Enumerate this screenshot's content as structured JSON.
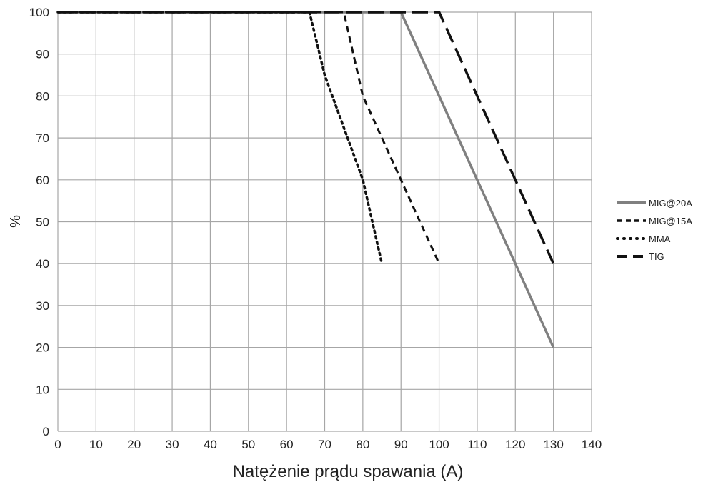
{
  "chart_data": {
    "type": "line",
    "xlabel": "Natężenie prądu spawania (A)",
    "ylabel": "%",
    "xlim": [
      0,
      140
    ],
    "ylim": [
      0,
      100
    ],
    "xticks": [
      0,
      10,
      20,
      30,
      40,
      50,
      60,
      70,
      80,
      90,
      100,
      110,
      120,
      130,
      140
    ],
    "yticks": [
      0,
      10,
      20,
      30,
      40,
      50,
      60,
      70,
      80,
      90,
      100
    ],
    "grid": true,
    "legend_position": "right",
    "series": [
      {
        "name": "MIG@20A",
        "style": "solid",
        "color": "#808080",
        "points": [
          [
            0,
            100
          ],
          [
            90,
            100
          ],
          [
            100,
            80
          ],
          [
            110,
            60
          ],
          [
            120,
            40
          ],
          [
            130,
            20
          ]
        ]
      },
      {
        "name": "MIG@15A",
        "style": "dashed",
        "color": "#111111",
        "points": [
          [
            0,
            100
          ],
          [
            75,
            100
          ],
          [
            80,
            80
          ],
          [
            90,
            60
          ],
          [
            100,
            40
          ]
        ]
      },
      {
        "name": "MMA",
        "style": "dotted",
        "color": "#111111",
        "points": [
          [
            0,
            100
          ],
          [
            66,
            100
          ],
          [
            70,
            85
          ],
          [
            80,
            60
          ],
          [
            85,
            40
          ]
        ]
      },
      {
        "name": "TIG",
        "style": "long-dashed",
        "color": "#111111",
        "points": [
          [
            0,
            100
          ],
          [
            100,
            100
          ],
          [
            110,
            80
          ],
          [
            120,
            60
          ],
          [
            130,
            40
          ]
        ]
      }
    ]
  }
}
